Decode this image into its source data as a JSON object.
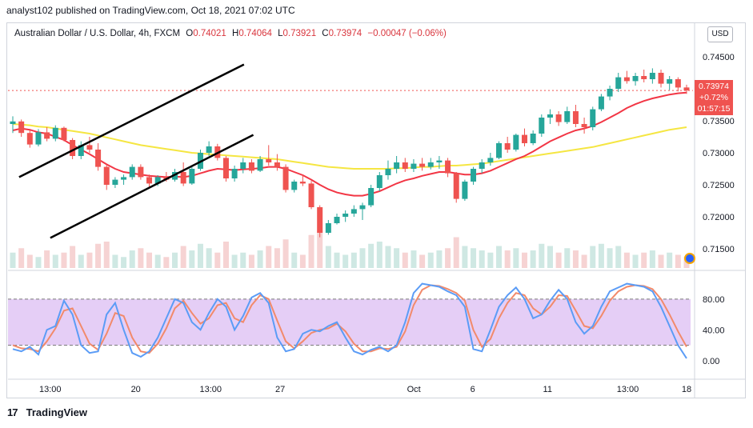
{
  "header": {
    "publisher": "analyst102 published on TradingView.com, Oct 18, 2021 07:02 UTC"
  },
  "legend": {
    "symbol": "Australian Dollar / U.S. Dollar, 4h, FXCM",
    "open_label": "O",
    "open": "0.74021",
    "high_label": "H",
    "high": "0.74064",
    "low_label": "L",
    "low": "0.73921",
    "close_label": "C",
    "close": "0.73974",
    "change": "−0.00047 (−0.06%)"
  },
  "currency_button": "USD",
  "price_tag": {
    "price": "0.73974",
    "change": "+0.72%",
    "countdown": "01:57:15"
  },
  "footer": {
    "brand": "TradingView",
    "brand_mark": "17"
  },
  "colors": {
    "up": "#26a69a",
    "down": "#ef5350",
    "ma_fast": "#f23645",
    "ma_slow": "#f5e642",
    "stoch_k": "#5b9cf6",
    "stoch_d": "#f28a6b",
    "band": "#e1c6f5"
  },
  "chart_data": [
    {
      "type": "candlestick",
      "title": "Australian Dollar / U.S. Dollar, 4h, FXCM",
      "ylim": [
        0.712,
        0.747
      ],
      "y_ticks": [
        "0.74500",
        "0.73500",
        "0.73000",
        "0.72500",
        "0.72000",
        "0.71500"
      ],
      "x_ticks": [
        "13:00",
        "20",
        "13:00",
        "27",
        "Oct",
        "6",
        "11",
        "13:00",
        "18"
      ],
      "current_price": 0.73974,
      "channel": {
        "upper": [
          {
            "x": 0.74,
            "y": 0.7262
          },
          {
            "x": 27.1,
            "y": 0.7438
          }
        ],
        "lower": [
          {
            "x": 4.4,
            "y": 0.7167
          },
          {
            "x": 28.2,
            "y": 0.7328
          }
        ]
      },
      "candles": [
        [
          0.7345,
          0.7357,
          0.7331,
          0.7349
        ],
        [
          0.7349,
          0.7352,
          0.7325,
          0.7331
        ],
        [
          0.7331,
          0.7335,
          0.7308,
          0.7313
        ],
        [
          0.7313,
          0.7337,
          0.731,
          0.7332
        ],
        [
          0.7332,
          0.734,
          0.7318,
          0.7322
        ],
        [
          0.7322,
          0.7343,
          0.7318,
          0.7339
        ],
        [
          0.7339,
          0.7341,
          0.7318,
          0.732
        ],
        [
          0.732,
          0.7323,
          0.729,
          0.7295
        ],
        [
          0.7295,
          0.7318,
          0.729,
          0.7312
        ],
        [
          0.7312,
          0.7325,
          0.73,
          0.7305
        ],
        [
          0.7305,
          0.7315,
          0.7272,
          0.7278
        ],
        [
          0.7278,
          0.7282,
          0.7242,
          0.725
        ],
        [
          0.725,
          0.7262,
          0.7245,
          0.7258
        ],
        [
          0.7258,
          0.7266,
          0.725,
          0.7262
        ],
        [
          0.7262,
          0.7282,
          0.7258,
          0.7278
        ],
        [
          0.7278,
          0.7282,
          0.7258,
          0.7262
        ],
        [
          0.7262,
          0.7266,
          0.7246,
          0.7252
        ],
        [
          0.7252,
          0.7265,
          0.7248,
          0.7262
        ],
        [
          0.7262,
          0.727,
          0.7255,
          0.7258
        ],
        [
          0.7258,
          0.7275,
          0.7255,
          0.727
        ],
        [
          0.727,
          0.7285,
          0.7248,
          0.7252
        ],
        [
          0.7252,
          0.728,
          0.725,
          0.7275
        ],
        [
          0.7275,
          0.7305,
          0.7272,
          0.73
        ],
        [
          0.73,
          0.7318,
          0.7295,
          0.731
        ],
        [
          0.731,
          0.7314,
          0.7288,
          0.7292
        ],
        [
          0.7292,
          0.7295,
          0.7255,
          0.726
        ],
        [
          0.726,
          0.728,
          0.7255,
          0.7275
        ],
        [
          0.7275,
          0.7292,
          0.7268,
          0.7285
        ],
        [
          0.7285,
          0.729,
          0.7268,
          0.7272
        ],
        [
          0.7272,
          0.7295,
          0.727,
          0.729
        ],
        [
          0.729,
          0.7312,
          0.728,
          0.7285
        ],
        [
          0.7285,
          0.7298,
          0.7272,
          0.7278
        ],
        [
          0.7278,
          0.7282,
          0.7238,
          0.7242
        ],
        [
          0.7242,
          0.7258,
          0.7238,
          0.7255
        ],
        [
          0.7255,
          0.7265,
          0.7248,
          0.7252
        ],
        [
          0.7252,
          0.7256,
          0.7212,
          0.7215
        ],
        [
          0.7215,
          0.7218,
          0.7168,
          0.7175
        ],
        [
          0.7175,
          0.7195,
          0.7172,
          0.719
        ],
        [
          0.719,
          0.7205,
          0.7188,
          0.72
        ],
        [
          0.72,
          0.721,
          0.7192,
          0.7205
        ],
        [
          0.7205,
          0.7218,
          0.72,
          0.7212
        ],
        [
          0.7212,
          0.7222,
          0.7195,
          0.7218
        ],
        [
          0.7218,
          0.725,
          0.7215,
          0.7245
        ],
        [
          0.7245,
          0.727,
          0.724,
          0.7265
        ],
        [
          0.7265,
          0.7288,
          0.7258,
          0.7275
        ],
        [
          0.7275,
          0.7295,
          0.7268,
          0.7285
        ],
        [
          0.7285,
          0.7292,
          0.727,
          0.7275
        ],
        [
          0.7275,
          0.729,
          0.727,
          0.7283
        ],
        [
          0.7283,
          0.7292,
          0.7272,
          0.7278
        ],
        [
          0.7278,
          0.7292,
          0.7274,
          0.7285
        ],
        [
          0.7285,
          0.7295,
          0.7275,
          0.7288
        ],
        [
          0.7288,
          0.7292,
          0.7262,
          0.7268
        ],
        [
          0.7268,
          0.727,
          0.7222,
          0.7228
        ],
        [
          0.7228,
          0.7258,
          0.7225,
          0.7255
        ],
        [
          0.7255,
          0.7278,
          0.725,
          0.7275
        ],
        [
          0.7275,
          0.729,
          0.7268,
          0.7285
        ],
        [
          0.7285,
          0.73,
          0.728,
          0.7292
        ],
        [
          0.7292,
          0.7318,
          0.729,
          0.7315
        ],
        [
          0.7315,
          0.7325,
          0.73,
          0.7305
        ],
        [
          0.7305,
          0.733,
          0.7302,
          0.7328
        ],
        [
          0.7328,
          0.7338,
          0.731,
          0.7315
        ],
        [
          0.7315,
          0.7335,
          0.7312,
          0.733
        ],
        [
          0.733,
          0.736,
          0.7325,
          0.7355
        ],
        [
          0.7355,
          0.7368,
          0.7345,
          0.736
        ],
        [
          0.736,
          0.7365,
          0.7342,
          0.7348
        ],
        [
          0.7348,
          0.7372,
          0.7345,
          0.7365
        ],
        [
          0.7365,
          0.7375,
          0.734,
          0.7345
        ],
        [
          0.7345,
          0.7355,
          0.733,
          0.734
        ],
        [
          0.734,
          0.7372,
          0.7335,
          0.7368
        ],
        [
          0.7368,
          0.7392,
          0.7365,
          0.7388
        ],
        [
          0.7388,
          0.7405,
          0.7382,
          0.74
        ],
        [
          0.74,
          0.7425,
          0.7395,
          0.7418
        ],
        [
          0.7418,
          0.7428,
          0.7408,
          0.7412
        ],
        [
          0.7412,
          0.7425,
          0.7405,
          0.742
        ],
        [
          0.742,
          0.743,
          0.741,
          0.7415
        ],
        [
          0.7415,
          0.7432,
          0.7408,
          0.7425
        ],
        [
          0.7425,
          0.743,
          0.7402,
          0.7408
        ],
        [
          0.7408,
          0.742,
          0.7398,
          0.7415
        ],
        [
          0.7415,
          0.7418,
          0.7396,
          0.7402
        ],
        [
          0.74021,
          0.74064,
          0.73921,
          0.73974
        ]
      ],
      "ma_fast": [
        0.7335,
        0.7338,
        0.7336,
        0.7332,
        0.733,
        0.7325,
        0.732,
        0.7312,
        0.7305,
        0.7298,
        0.729,
        0.7282,
        0.7275,
        0.727,
        0.7268,
        0.7266,
        0.7264,
        0.7263,
        0.7262,
        0.7263,
        0.7262,
        0.7264,
        0.7268,
        0.7272,
        0.7275,
        0.7274,
        0.7273,
        0.7274,
        0.7275,
        0.7276,
        0.7278,
        0.7278,
        0.7275,
        0.727,
        0.7265,
        0.7258,
        0.725,
        0.7243,
        0.7238,
        0.7235,
        0.7233,
        0.7233,
        0.7236,
        0.724,
        0.7246,
        0.7252,
        0.7257,
        0.726,
        0.7264,
        0.7267,
        0.727,
        0.727,
        0.7268,
        0.7266,
        0.7266,
        0.7268,
        0.7272,
        0.7278,
        0.7284,
        0.729,
        0.7295,
        0.7302,
        0.731,
        0.7318,
        0.7324,
        0.733,
        0.7335,
        0.7338,
        0.7342,
        0.7348,
        0.7355,
        0.7362,
        0.737,
        0.7376,
        0.7381,
        0.7385,
        0.7388,
        0.7391,
        0.7393,
        0.7394
      ],
      "ma_slow": [
        0.7345,
        0.7344,
        0.7343,
        0.7341,
        0.734,
        0.7338,
        0.7336,
        0.7334,
        0.7332,
        0.733,
        0.7327,
        0.7324,
        0.7321,
        0.7318,
        0.7315,
        0.7312,
        0.731,
        0.7308,
        0.7306,
        0.7304,
        0.7302,
        0.73,
        0.7299,
        0.7298,
        0.7297,
        0.7296,
        0.7295,
        0.7294,
        0.7293,
        0.7292,
        0.7291,
        0.729,
        0.7288,
        0.7286,
        0.7284,
        0.7282,
        0.728,
        0.7278,
        0.7277,
        0.7276,
        0.7275,
        0.7275,
        0.7275,
        0.7275,
        0.7275,
        0.7276,
        0.7276,
        0.7277,
        0.7278,
        0.7278,
        0.7279,
        0.728,
        0.728,
        0.7281,
        0.7282,
        0.7283,
        0.7285,
        0.7287,
        0.7289,
        0.7291,
        0.7293,
        0.7295,
        0.7297,
        0.7299,
        0.7301,
        0.7303,
        0.7305,
        0.7307,
        0.7309,
        0.7312,
        0.7315,
        0.7318,
        0.7321,
        0.7324,
        0.7327,
        0.733,
        0.7333,
        0.7336,
        0.7338,
        0.734
      ],
      "volume": [
        0.35,
        0.45,
        0.3,
        0.25,
        0.4,
        0.3,
        0.35,
        0.5,
        0.3,
        0.35,
        0.55,
        0.6,
        0.3,
        0.25,
        0.4,
        0.45,
        0.35,
        0.3,
        0.25,
        0.35,
        0.5,
        0.4,
        0.55,
        0.45,
        0.35,
        0.6,
        0.3,
        0.35,
        0.3,
        0.4,
        0.5,
        0.45,
        0.65,
        0.35,
        0.3,
        0.75,
        0.85,
        0.5,
        0.35,
        0.3,
        0.35,
        0.45,
        0.55,
        0.6,
        0.5,
        0.45,
        0.35,
        0.4,
        0.3,
        0.35,
        0.4,
        0.45,
        0.7,
        0.5,
        0.45,
        0.4,
        0.35,
        0.5,
        0.4,
        0.45,
        0.35,
        0.4,
        0.55,
        0.5,
        0.35,
        0.45,
        0.4,
        0.3,
        0.5,
        0.55,
        0.45,
        0.5,
        0.35,
        0.3,
        0.35,
        0.4,
        0.3,
        0.35,
        0.3,
        0.25
      ]
    },
    {
      "type": "line",
      "title": "",
      "ylim": [
        -20,
        110
      ],
      "y_ticks": [
        "80.00",
        "40.00",
        "0.00"
      ],
      "levels": {
        "upper": 80,
        "lower": 20
      },
      "series": [
        {
          "values": [
            15,
            12,
            18,
            8,
            40,
            45,
            78,
            60,
            20,
            10,
            12,
            60,
            75,
            40,
            10,
            5,
            12,
            30,
            55,
            80,
            75,
            50,
            40,
            62,
            80,
            70,
            40,
            58,
            82,
            88,
            75,
            30,
            12,
            15,
            35,
            40,
            38,
            45,
            50,
            30,
            12,
            8,
            14,
            18,
            12,
            20,
            50,
            88,
            100,
            98,
            96,
            90,
            85,
            70,
            15,
            12,
            40,
            70,
            85,
            95,
            80,
            55,
            60,
            78,
            92,
            80,
            50,
            35,
            45,
            70,
            90,
            95,
            100,
            98,
            96,
            90,
            70,
            45,
            20,
            3
          ]
        },
        {
          "values": [
            20,
            16,
            15,
            12,
            25,
            42,
            65,
            68,
            45,
            22,
            14,
            35,
            62,
            58,
            30,
            12,
            10,
            22,
            42,
            68,
            78,
            62,
            48,
            55,
            72,
            75,
            55,
            50,
            72,
            85,
            80,
            52,
            25,
            16,
            25,
            36,
            40,
            42,
            48,
            38,
            22,
            12,
            12,
            16,
            15,
            18,
            38,
            72,
            92,
            98,
            97,
            93,
            88,
            78,
            40,
            18,
            28,
            55,
            75,
            88,
            85,
            68,
            60,
            70,
            85,
            84,
            65,
            45,
            42,
            58,
            78,
            90,
            96,
            98,
            97,
            93,
            80,
            60,
            38,
            18
          ]
        }
      ]
    }
  ]
}
